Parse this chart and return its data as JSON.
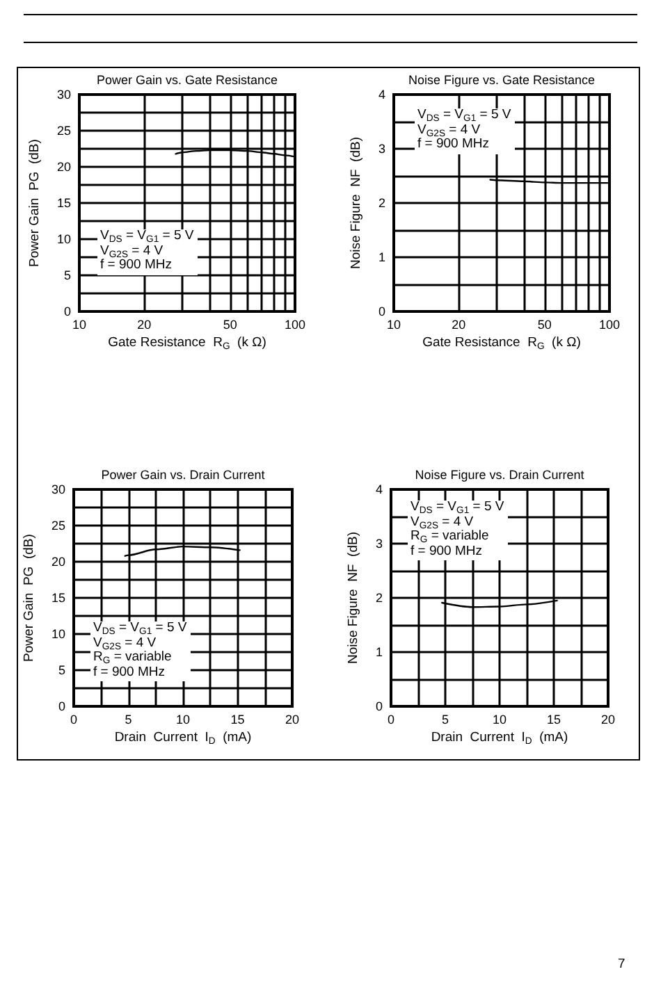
{
  "chart_data": [
    {
      "type": "line",
      "title": "Power Gain vs. Gate Resistance",
      "xlabel": "Gate Resistance  R$_{G}$  (k Ω)",
      "ylabel": "Power Gain  PG  (dB)",
      "annotations": [
        "V$_{DS}$ = V$_{G1}$ = 5 V\nV$_{G2S}$ = 4 V\nf = 900 MHz"
      ],
      "x": [
        28,
        30,
        35,
        40,
        50,
        60,
        70,
        80,
        90,
        100
      ],
      "values": [
        21.8,
        22.0,
        22.2,
        22.3,
        22.3,
        22.2,
        22.0,
        21.8,
        21.6,
        21.4
      ],
      "color": "#000000",
      "log": "x",
      "xlim": [
        10,
        100
      ],
      "xticks": [
        10,
        20,
        {
          "value": 30,
          "label": null
        },
        {
          "value": 40,
          "label": null
        },
        50,
        {
          "value": 60,
          "label": null
        },
        {
          "value": 70,
          "label": null
        },
        {
          "value": 80,
          "label": null
        },
        {
          "value": 90,
          "label": null
        },
        100
      ],
      "ylim": [
        0,
        30
      ],
      "yticks": [
        0,
        {
          "value": 2.5,
          "label": null
        },
        5,
        {
          "value": 7.5,
          "label": null
        },
        10,
        {
          "value": 12.5,
          "label": null
        },
        15,
        {
          "value": 17.5,
          "label": null
        },
        20,
        {
          "value": 22.5,
          "label": null
        },
        25,
        {
          "value": 27.5,
          "label": null
        },
        30
      ],
      "grid": true
    },
    {
      "type": "line",
      "title": "Noise Figure vs. Gate Resistance",
      "xlabel": "Gate Resistance  R$_{G}$  (k Ω)",
      "ylabel": "Noise Figure  NF  (dB)",
      "annotations": [
        "V$_{DS}$ = V$_{G1}$ = 5 V\nV$_{G2S}$ = 4 V\nf = 900 MHz"
      ],
      "x": [
        28,
        30,
        40,
        50,
        60,
        70,
        80,
        90,
        100
      ],
      "values": [
        2.43,
        2.42,
        2.4,
        2.38,
        2.37,
        2.37,
        2.37,
        2.37,
        2.37
      ],
      "color": "#000000",
      "log": "x",
      "xlim": [
        10,
        100
      ],
      "xticks": [
        10,
        20,
        {
          "value": 30,
          "label": null
        },
        {
          "value": 40,
          "label": null
        },
        50,
        {
          "value": 60,
          "label": null
        },
        {
          "value": 70,
          "label": null
        },
        {
          "value": 80,
          "label": null
        },
        {
          "value": 90,
          "label": null
        },
        100
      ],
      "ylim": [
        0,
        4
      ],
      "yticks": [
        0,
        {
          "value": 0.5,
          "label": null
        },
        1,
        {
          "value": 1.5,
          "label": null
        },
        2,
        {
          "value": 2.5,
          "label": null
        },
        3,
        {
          "value": 3.5,
          "label": null
        },
        4
      ],
      "grid": true
    },
    {
      "type": "line",
      "title": "Power Gain vs. Drain Current",
      "xlabel": "Drain  Current  I$_{D}$  (mA)",
      "ylabel": "Power Gain  PG  (dB)",
      "annotations": [
        "V$_{DS}$ = V$_{G1}$ = 5 V\nV$_{G2S}$ = 4 V\nR$_{G}$ = variable\nf = 900 MHz"
      ],
      "x": [
        4.7,
        5,
        7.5,
        10,
        12.5,
        15.2
      ],
      "values": [
        20.8,
        20.9,
        21.7,
        22.1,
        22.0,
        21.6
      ],
      "color": "#000000",
      "xlim": [
        0,
        20
      ],
      "xticks": [
        0,
        {
          "value": 2.5,
          "label": null
        },
        5,
        {
          "value": 7.5,
          "label": null
        },
        10,
        {
          "value": 12.5,
          "label": null
        },
        15,
        {
          "value": 17.5,
          "label": null
        },
        20
      ],
      "ylim": [
        0,
        30
      ],
      "yticks": [
        0,
        {
          "value": 2.5,
          "label": null
        },
        5,
        {
          "value": 7.5,
          "label": null
        },
        10,
        {
          "value": 12.5,
          "label": null
        },
        15,
        {
          "value": 17.5,
          "label": null
        },
        20,
        {
          "value": 22.5,
          "label": null
        },
        25,
        {
          "value": 27.5,
          "label": null
        },
        30
      ],
      "grid": true
    },
    {
      "type": "line",
      "title": "Noise Figure vs. Drain Current",
      "xlabel": "Drain  Current  I$_{D}$  (mA)",
      "ylabel": "Noise Figure  NF  (dB)",
      "annotations": [
        "V$_{DS}$ = V$_{G1}$ = 5 V\nV$_{G2S}$ = 4 V\nR$_{G}$ = variable\nf = 900 MHz",
        "7"
      ],
      "x": [
        4.7,
        7.5,
        10,
        12.5,
        15.3
      ],
      "values": [
        1.91,
        1.83,
        1.84,
        1.88,
        1.95
      ],
      "color": "#000000",
      "xlim": [
        0,
        20
      ],
      "xticks": [
        0,
        {
          "value": 2.5,
          "label": null
        },
        5,
        {
          "value": 7.5,
          "label": null
        },
        10,
        {
          "value": 12.5,
          "label": null
        },
        15,
        {
          "value": 17.5,
          "label": null
        },
        20
      ],
      "ylim": [
        0,
        4
      ],
      "yticks": [
        0,
        {
          "value": 0.5,
          "label": null
        },
        1,
        {
          "value": 1.5,
          "label": null
        },
        2,
        {
          "value": 2.5,
          "label": null
        },
        3,
        {
          "value": 3.5,
          "label": null
        },
        4
      ],
      "grid": true
    }
  ]
}
